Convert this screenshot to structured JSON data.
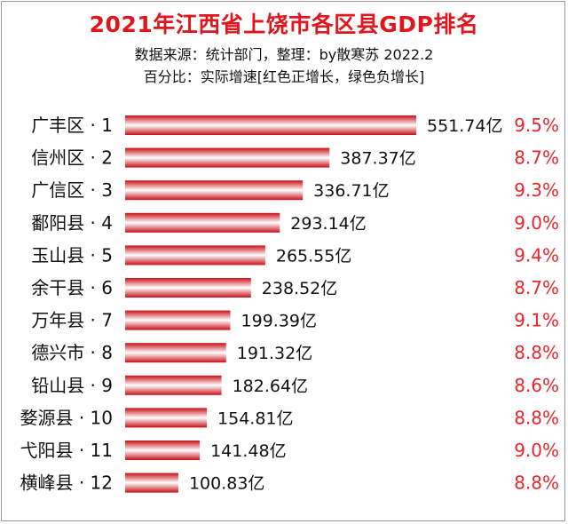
{
  "chart_data": {
    "type": "bar",
    "orientation": "horizontal",
    "title": "2021年江西省上饶市各区县GDP排名",
    "subtitle_lines": [
      "数据来源：统计部门，整理：by散寒苏 2022.2",
      "百分比：实际增速[红色正增长，绿色负增长]"
    ],
    "unit": "亿",
    "categories": [
      "广丰区 · 1",
      "信州区 · 2",
      "广信区 · 3",
      "鄱阳县 · 4",
      "玉山县 · 5",
      "余干县 · 6",
      "万年县 · 7",
      "德兴市 · 8",
      "铅山县 · 9",
      "婺源县 · 10",
      "弋阳县 · 11",
      "横峰县 · 12"
    ],
    "values": [
      551.74,
      387.37,
      336.71,
      293.14,
      265.55,
      238.52,
      199.39,
      191.32,
      182.64,
      154.81,
      141.48,
      100.83
    ],
    "value_labels": [
      "551.74亿",
      "387.37亿",
      "336.71亿",
      "293.14亿",
      "265.55亿",
      "238.52亿",
      "199.39亿",
      "191.32亿",
      "182.64亿",
      "154.81亿",
      "141.48亿",
      "100.83亿"
    ],
    "growth_labels": [
      "9.5%",
      "8.7%",
      "9.3%",
      "9.0%",
      "9.4%",
      "8.7%",
      "9.1%",
      "8.8%",
      "8.6%",
      "8.8%",
      "9.0%",
      "8.8%"
    ],
    "xlim": [
      0,
      551.74
    ],
    "grid": false,
    "legend": "none"
  },
  "colors": {
    "title": "#e0161c",
    "bar_dark": "#c80f16",
    "bar_light": "#ffffff",
    "growth_positive": "#e8262b",
    "growth_negative": "#1a9e3a"
  }
}
